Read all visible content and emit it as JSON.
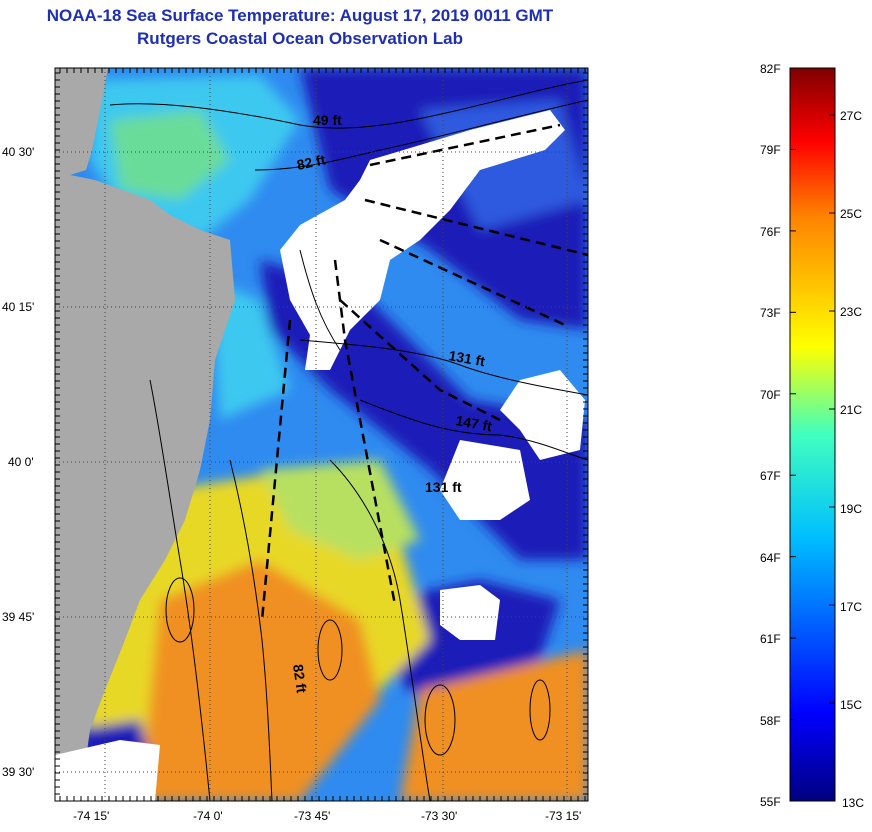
{
  "title": {
    "line1": "NOAA-18 Sea Surface Temperature:  August 17, 2019 0011 GMT",
    "line2": "Rutgers Coastal Ocean Observation Lab"
  },
  "map": {
    "lat_labels": [
      "40 30'",
      "40 15'",
      "40 0'",
      "39 45'",
      "39 30'"
    ],
    "lon_labels": [
      "-74 15'",
      "-74 0'",
      "-73 45'",
      "-73 30'",
      "-73 15'"
    ],
    "contour_labels": [
      "49 ft",
      "82 ft",
      "131 ft",
      "147 ft",
      "131 ft",
      "82 ft"
    ],
    "colors": {
      "land": "#a9a9a9",
      "cloud": "#ffffff",
      "cold": "#1a1ab8",
      "cool": "#2f8bf0",
      "mid": "#3cc8f0",
      "warm": "#e8d828",
      "hot": "#f09020"
    }
  },
  "colorbar": {
    "fahrenheit": [
      "82F",
      "79F",
      "76F",
      "73F",
      "70F",
      "67F",
      "64F",
      "61F",
      "58F",
      "55F"
    ],
    "celsius": [
      "27C",
      "25C",
      "23C",
      "21C",
      "19C",
      "17C",
      "15C",
      "13C"
    ]
  }
}
